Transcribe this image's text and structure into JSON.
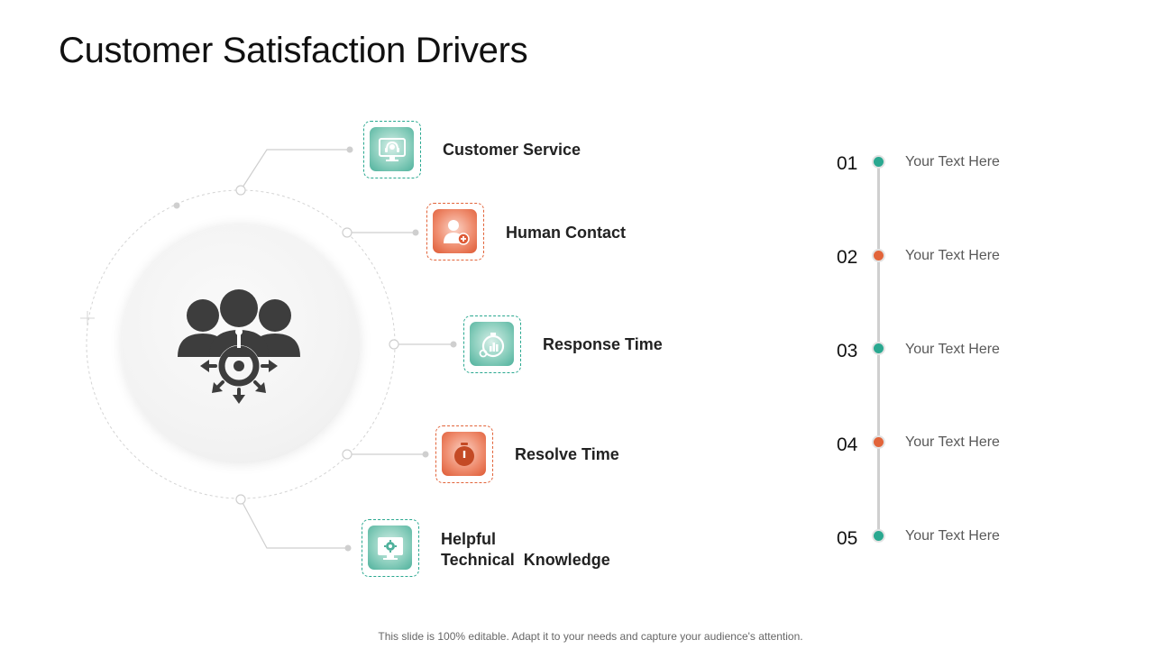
{
  "title": "Customer Satisfaction Drivers",
  "colors": {
    "teal": "#2aa890",
    "orange": "#e2643a",
    "icon_dark": "#3d3d3d"
  },
  "hub": {
    "icon": "team-target-icon"
  },
  "drivers": [
    {
      "label": "Customer Service",
      "icon": "support-monitor-icon",
      "color": "teal"
    },
    {
      "label": "Human Contact",
      "icon": "user-add-icon",
      "color": "orange"
    },
    {
      "label": "Response Time",
      "icon": "stopwatch-chart-icon",
      "color": "teal"
    },
    {
      "label": "Resolve Time",
      "icon": "stopwatch-icon",
      "color": "orange"
    },
    {
      "label_lines": [
        "Helpful",
        "Technical  Knowledge"
      ],
      "icon": "gear-monitor-icon",
      "color": "teal"
    }
  ],
  "timeline": [
    {
      "number": "01",
      "text": "Your Text Here",
      "color": "teal"
    },
    {
      "number": "02",
      "text": "Your Text Here",
      "color": "orange"
    },
    {
      "number": "03",
      "text": "Your Text Here",
      "color": "teal"
    },
    {
      "number": "04",
      "text": "Your Text Here",
      "color": "orange"
    },
    {
      "number": "05",
      "text": "Your Text Here",
      "color": "teal"
    }
  ],
  "footer": "This slide is 100% editable. Adapt it to your needs and capture your audience's attention."
}
